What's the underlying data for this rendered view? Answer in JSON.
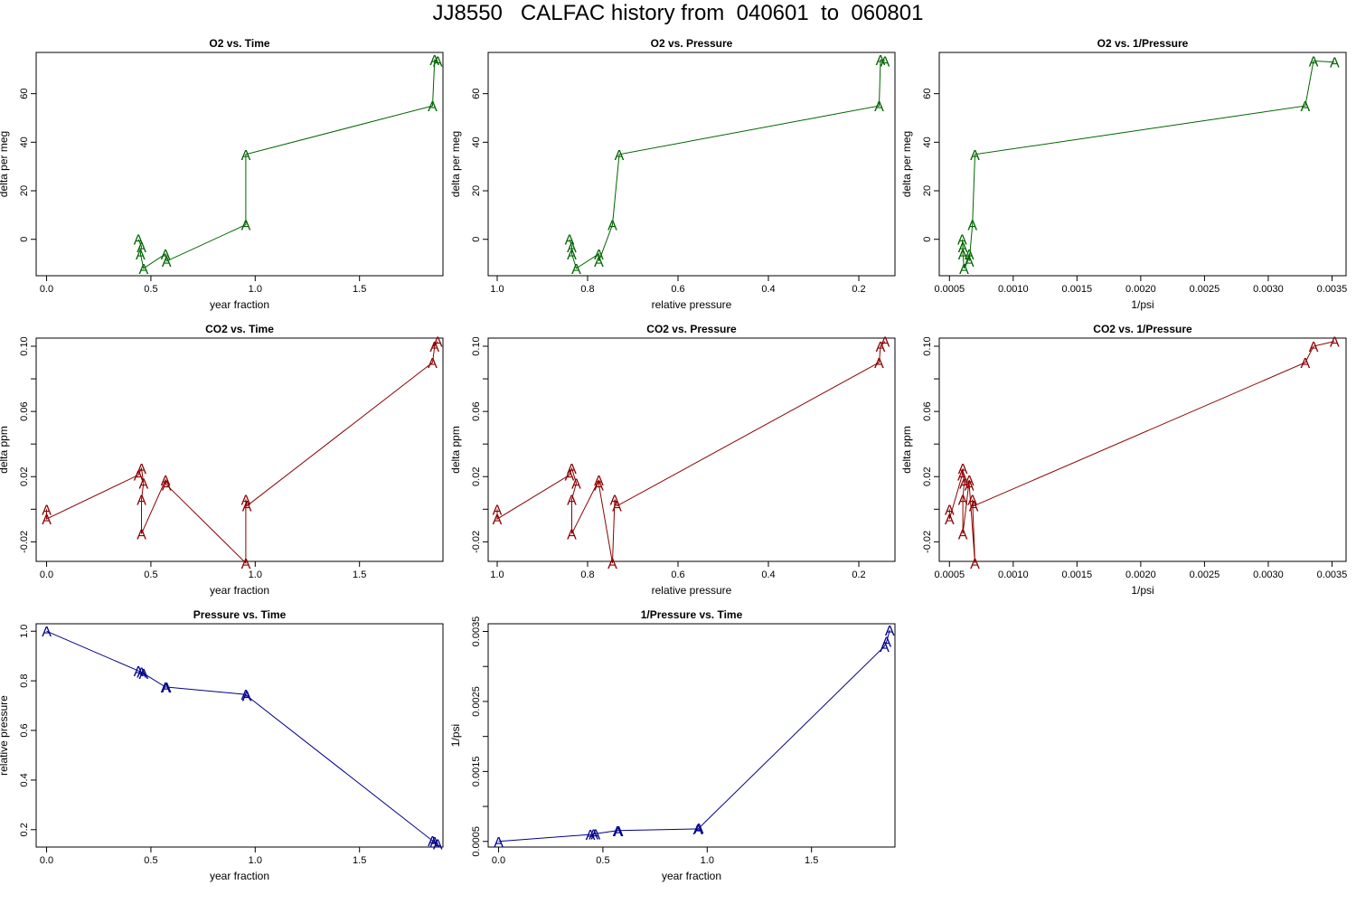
{
  "page_title": "JJ8550   CALFAC history from  040601  to  060801",
  "colors": {
    "o2": "#006400",
    "co2": "#8b0000",
    "pressure": "#00008b"
  },
  "point_marker": "A",
  "chart_data": [
    {
      "id": "o2-time",
      "type": "line",
      "title": "O2 vs. Time",
      "xlabel": "year fraction",
      "ylabel": "delta per meg",
      "xlim": [
        -0.05,
        1.9
      ],
      "ylim": [
        -15,
        77
      ],
      "reverse_x": false,
      "xticks": [
        0,
        0.5,
        1,
        1.5
      ],
      "xtick_labels": [
        "0.0",
        "0.5",
        "1.0",
        "1.5"
      ],
      "yticks": [
        0,
        20,
        40,
        60
      ],
      "ytick_labels": [
        "0",
        "20",
        "40",
        "60"
      ],
      "color_key": "o2",
      "x": [
        0.44,
        0.455,
        0.45,
        0.465,
        0.57,
        0.575,
        0.955,
        0.955,
        1.85,
        1.86,
        1.875
      ],
      "y": [
        0,
        -3,
        -6,
        -12,
        -6,
        -9,
        6,
        35,
        55,
        74,
        73.5
      ]
    },
    {
      "id": "o2-pressure",
      "type": "line",
      "title": "O2 vs. Pressure",
      "xlabel": "relative pressure",
      "ylabel": "delta per meg",
      "xlim": [
        1.02,
        0.12
      ],
      "ylim": [
        -15,
        77
      ],
      "reverse_x": true,
      "xticks": [
        1.0,
        0.8,
        0.6,
        0.4,
        0.2
      ],
      "xtick_labels": [
        "1.0",
        "0.8",
        "0.6",
        "0.4",
        "0.2"
      ],
      "yticks": [
        0,
        20,
        40,
        60
      ],
      "ytick_labels": [
        "0",
        "20",
        "40",
        "60"
      ],
      "color_key": "o2",
      "x": [
        0.84,
        0.835,
        0.835,
        0.825,
        0.775,
        0.775,
        0.745,
        0.73,
        0.155,
        0.152,
        0.142
      ],
      "y": [
        0,
        -3,
        -6,
        -12,
        -6,
        -9,
        6,
        35,
        55,
        74,
        73.5
      ]
    },
    {
      "id": "o2-invpressure",
      "type": "line",
      "title": "O2 vs. 1/Pressure",
      "xlabel": "1/psi",
      "ylabel": "delta per meg",
      "xlim": [
        0.00042,
        0.00361
      ],
      "ylim": [
        -15,
        77
      ],
      "reverse_x": false,
      "xticks": [
        0.0005,
        0.001,
        0.0015,
        0.002,
        0.0025,
        0.003,
        0.0035
      ],
      "xtick_labels": [
        "0.0005",
        "0.0010",
        "0.0015",
        "0.0020",
        "0.0025",
        "0.0030",
        "0.0035"
      ],
      "yticks": [
        0,
        20,
        40,
        60
      ],
      "ytick_labels": [
        "0",
        "20",
        "40",
        "60"
      ],
      "color_key": "o2",
      "x": [
        0.0006,
        0.000605,
        0.000605,
        0.000615,
        0.000655,
        0.000655,
        0.00068,
        0.0007,
        0.00329,
        0.003355,
        0.00352
      ],
      "y": [
        0,
        -3,
        -6,
        -12,
        -6,
        -9,
        6,
        35,
        55,
        73.5,
        73
      ]
    },
    {
      "id": "co2-time",
      "type": "line",
      "title": "CO2 vs. Time",
      "xlabel": "year fraction",
      "ylabel": "delta ppm",
      "xlim": [
        -0.05,
        1.9
      ],
      "ylim": [
        -0.032,
        0.105
      ],
      "reverse_x": false,
      "xticks": [
        0,
        0.5,
        1,
        1.5
      ],
      "xtick_labels": [
        "0.0",
        "0.5",
        "1.0",
        "1.5"
      ],
      "yticks": [
        -0.02,
        0.02,
        0.06,
        0.1
      ],
      "ytick_labels": [
        "-0.02",
        "0.02",
        "0.06",
        "0.10"
      ],
      "y_minor_ticks": [
        0,
        0.04,
        0.08
      ],
      "color_key": "co2",
      "x": [
        0,
        0,
        0.44,
        0.455,
        0.465,
        0.455,
        0.455,
        0.57,
        0.575,
        0.955,
        0.955,
        0.96,
        1.85,
        1.86,
        1.875
      ],
      "y": [
        0.0,
        -0.006,
        0.021,
        0.025,
        0.016,
        0.006,
        -0.015,
        0.018,
        0.015,
        -0.033,
        0.006,
        0.002,
        0.09,
        0.1,
        0.103
      ]
    },
    {
      "id": "co2-pressure",
      "type": "line",
      "title": "CO2 vs. Pressure",
      "xlabel": "relative pressure",
      "ylabel": "delta ppm",
      "xlim": [
        1.02,
        0.12
      ],
      "ylim": [
        -0.032,
        0.105
      ],
      "reverse_x": true,
      "xticks": [
        1.0,
        0.8,
        0.6,
        0.4,
        0.2
      ],
      "xtick_labels": [
        "1.0",
        "0.8",
        "0.6",
        "0.4",
        "0.2"
      ],
      "yticks": [
        -0.02,
        0.02,
        0.06,
        0.1
      ],
      "ytick_labels": [
        "-0.02",
        "0.02",
        "0.06",
        "0.10"
      ],
      "y_minor_ticks": [
        0,
        0.04,
        0.08
      ],
      "color_key": "co2",
      "x": [
        1.0,
        1.0,
        0.84,
        0.835,
        0.825,
        0.835,
        0.835,
        0.775,
        0.775,
        0.745,
        0.74,
        0.735,
        0.155,
        0.152,
        0.142
      ],
      "y": [
        0.0,
        -0.006,
        0.021,
        0.025,
        0.016,
        0.006,
        -0.015,
        0.018,
        0.015,
        -0.033,
        0.006,
        0.002,
        0.09,
        0.1,
        0.103
      ]
    },
    {
      "id": "co2-invpressure",
      "type": "line",
      "title": "CO2 vs. 1/Pressure",
      "xlabel": "1/psi",
      "ylabel": "delta ppm",
      "xlim": [
        0.00042,
        0.00361
      ],
      "ylim": [
        -0.032,
        0.105
      ],
      "reverse_x": false,
      "xticks": [
        0.0005,
        0.001,
        0.0015,
        0.002,
        0.0025,
        0.003,
        0.0035
      ],
      "xtick_labels": [
        "0.0005",
        "0.0010",
        "0.0015",
        "0.0020",
        "0.0025",
        "0.0030",
        "0.0035"
      ],
      "yticks": [
        -0.02,
        0.02,
        0.06,
        0.1
      ],
      "ytick_labels": [
        "-0.02",
        "0.02",
        "0.06",
        "0.10"
      ],
      "y_minor_ticks": [
        0,
        0.04,
        0.08
      ],
      "color_key": "co2",
      "x": [
        0.0005,
        0.0005,
        0.0006,
        0.000605,
        0.000615,
        0.000605,
        0.000605,
        0.000655,
        0.000655,
        0.0007,
        0.00068,
        0.00069,
        0.00329,
        0.003355,
        0.00352
      ],
      "y": [
        0.0,
        -0.006,
        0.021,
        0.025,
        0.016,
        0.006,
        -0.015,
        0.018,
        0.015,
        -0.033,
        0.006,
        0.002,
        0.09,
        0.1,
        0.103
      ]
    },
    {
      "id": "pressure-time",
      "type": "line",
      "title": "Pressure vs. Time",
      "xlabel": "year fraction",
      "ylabel": "relative pressure",
      "xlim": [
        -0.05,
        1.9
      ],
      "ylim": [
        0.13,
        1.03
      ],
      "reverse_x": false,
      "xticks": [
        0,
        0.5,
        1,
        1.5
      ],
      "xtick_labels": [
        "0.0",
        "0.5",
        "1.0",
        "1.5"
      ],
      "yticks": [
        0.2,
        0.4,
        0.6,
        0.8,
        1.0
      ],
      "ytick_labels": [
        "0.2",
        "0.4",
        "0.6",
        "0.8",
        "1.0"
      ],
      "color_key": "pressure",
      "x": [
        0,
        0.44,
        0.455,
        0.465,
        0.57,
        0.575,
        0.955,
        0.96,
        1.85,
        1.86,
        1.875
      ],
      "y": [
        1.0,
        0.84,
        0.835,
        0.83,
        0.775,
        0.775,
        0.745,
        0.74,
        0.155,
        0.152,
        0.142
      ]
    },
    {
      "id": "invpressure-time",
      "type": "line",
      "title": "1/Pressure vs. Time",
      "xlabel": "year fraction",
      "ylabel": "1/psi",
      "xlim": [
        -0.05,
        1.9
      ],
      "ylim": [
        0.00042,
        0.00361
      ],
      "reverse_x": false,
      "xticks": [
        0,
        0.5,
        1,
        1.5
      ],
      "xtick_labels": [
        "0.0",
        "0.5",
        "1.0",
        "1.5"
      ],
      "yticks": [
        0.0005,
        0.0015,
        0.0025,
        0.0035
      ],
      "ytick_labels": [
        "0.0005",
        "0.0015",
        "0.0025",
        "0.0035"
      ],
      "y_minor_ticks": [
        0.001,
        0.002,
        0.003
      ],
      "color_key": "pressure",
      "x": [
        0,
        0.44,
        0.455,
        0.465,
        0.57,
        0.575,
        0.955,
        0.96,
        1.85,
        1.86,
        1.875
      ],
      "y": [
        0.0005,
        0.0006,
        0.000605,
        0.00061,
        0.000655,
        0.000655,
        0.00068,
        0.00069,
        0.00329,
        0.003355,
        0.00352
      ]
    }
  ]
}
